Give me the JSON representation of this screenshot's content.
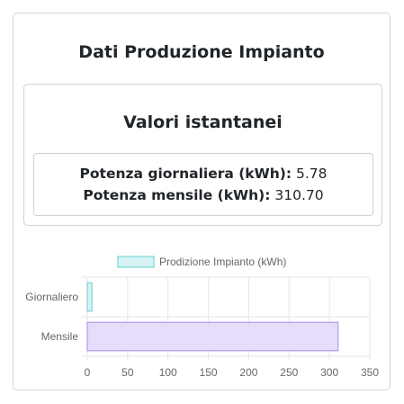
{
  "page": {
    "title": "Dati Produzione Impianto",
    "subtitle": "Valori istantanei",
    "daily_label": "Potenza giornaliera (kWh):",
    "daily_value": "5.78",
    "monthly_label": "Potenza mensile (kWh):",
    "monthly_value": "310.70"
  },
  "chart_data": {
    "type": "bar",
    "orientation": "horizontal",
    "categories": [
      "Giornaliero",
      "Mensile"
    ],
    "series": [
      {
        "name": "Prodizione Impianto (kWh)",
        "values": [
          5.78,
          310.7
        ]
      }
    ],
    "bar_colors": [
      "#d8f3f3",
      "#e6dcfb"
    ],
    "bar_borders": [
      "#66cfcf",
      "#a98be8"
    ],
    "xlim": [
      0,
      350
    ],
    "xticks": [
      "0",
      "50",
      "100",
      "150",
      "200",
      "250",
      "300",
      "350"
    ],
    "grid": true,
    "legend": "top"
  }
}
